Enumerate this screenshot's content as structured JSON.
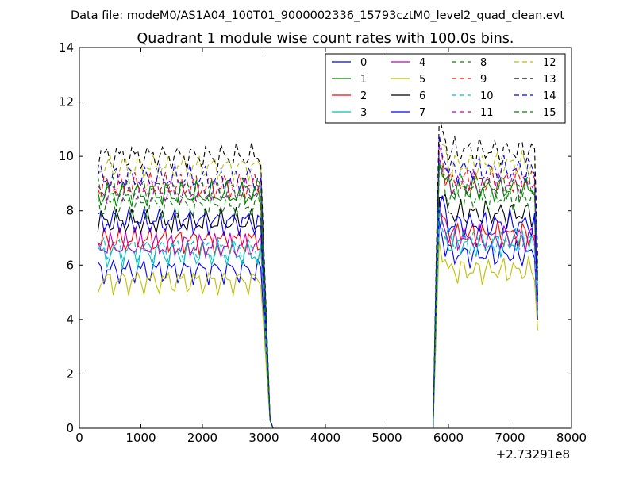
{
  "suptitle": "Data file: modeM0/AS1A04_100T01_9000002336_15793cztM0_level2_quad_clean.evt",
  "chart_data": {
    "type": "line",
    "title": "Quadrant 1 module wise count rates with 100.0s bins.",
    "xlabel": "",
    "ylabel": "",
    "x_offset_label": "+2.73291e8",
    "xlim": [
      0,
      8000
    ],
    "ylim": [
      0,
      14
    ],
    "xticks": [
      0,
      1000,
      2000,
      3000,
      4000,
      5000,
      6000,
      7000,
      8000
    ],
    "yticks": [
      0,
      2,
      4,
      6,
      8,
      10,
      12,
      14
    ],
    "grid": false,
    "legend_position": "top-right",
    "segments": [
      {
        "x_start": 300,
        "x_end": 2950,
        "step": 50
      },
      {
        "x_start": 5800,
        "x_end": 7450,
        "step": 50
      }
    ],
    "gap": {
      "x_start": 3150,
      "x_end": 5750,
      "value": 0
    },
    "series": [
      {
        "name": "0",
        "color": "#0000ff",
        "style": "solid",
        "level1": 5.8,
        "level2": 6.4
      },
      {
        "name": "1",
        "color": "#008000",
        "style": "solid",
        "level1": 8.6,
        "level2": 8.8
      },
      {
        "name": "2",
        "color": "#ff0000",
        "style": "solid",
        "level1": 6.9,
        "level2": 7.1
      },
      {
        "name": "3",
        "color": "#00bfbf",
        "style": "solid",
        "level1": 6.4,
        "level2": 6.8
      },
      {
        "name": "4",
        "color": "#bf00bf",
        "style": "solid",
        "level1": 6.7,
        "level2": 7.0
      },
      {
        "name": "5",
        "color": "#bfbf00",
        "style": "solid",
        "level1": 5.4,
        "level2": 5.8
      },
      {
        "name": "6",
        "color": "#000000",
        "style": "solid",
        "level1": 7.6,
        "level2": 7.9
      },
      {
        "name": "7",
        "color": "#0000ff",
        "style": "solid",
        "level1": 7.6,
        "level2": 7.5
      },
      {
        "name": "8",
        "color": "#008000",
        "style": "dashed",
        "level1": 8.2,
        "level2": 8.5
      },
      {
        "name": "9",
        "color": "#ff0000",
        "style": "dashed",
        "level1": 8.9,
        "level2": 9.1
      },
      {
        "name": "10",
        "color": "#00bfbf",
        "style": "dashed",
        "level1": 6.6,
        "level2": 6.9
      },
      {
        "name": "11",
        "color": "#bf00bf",
        "style": "dashed",
        "level1": 8.7,
        "level2": 9.0
      },
      {
        "name": "12",
        "color": "#bfbf00",
        "style": "dashed",
        "level1": 9.6,
        "level2": 9.7
      },
      {
        "name": "13",
        "color": "#000000",
        "style": "dashed",
        "level1": 10.0,
        "level2": 10.2
      },
      {
        "name": "14",
        "color": "#0000ff",
        "style": "dashed",
        "level1": 9.2,
        "level2": 9.5
      },
      {
        "name": "15",
        "color": "#008000",
        "style": "dashed",
        "level1": 8.8,
        "level2": 8.9
      }
    ]
  }
}
